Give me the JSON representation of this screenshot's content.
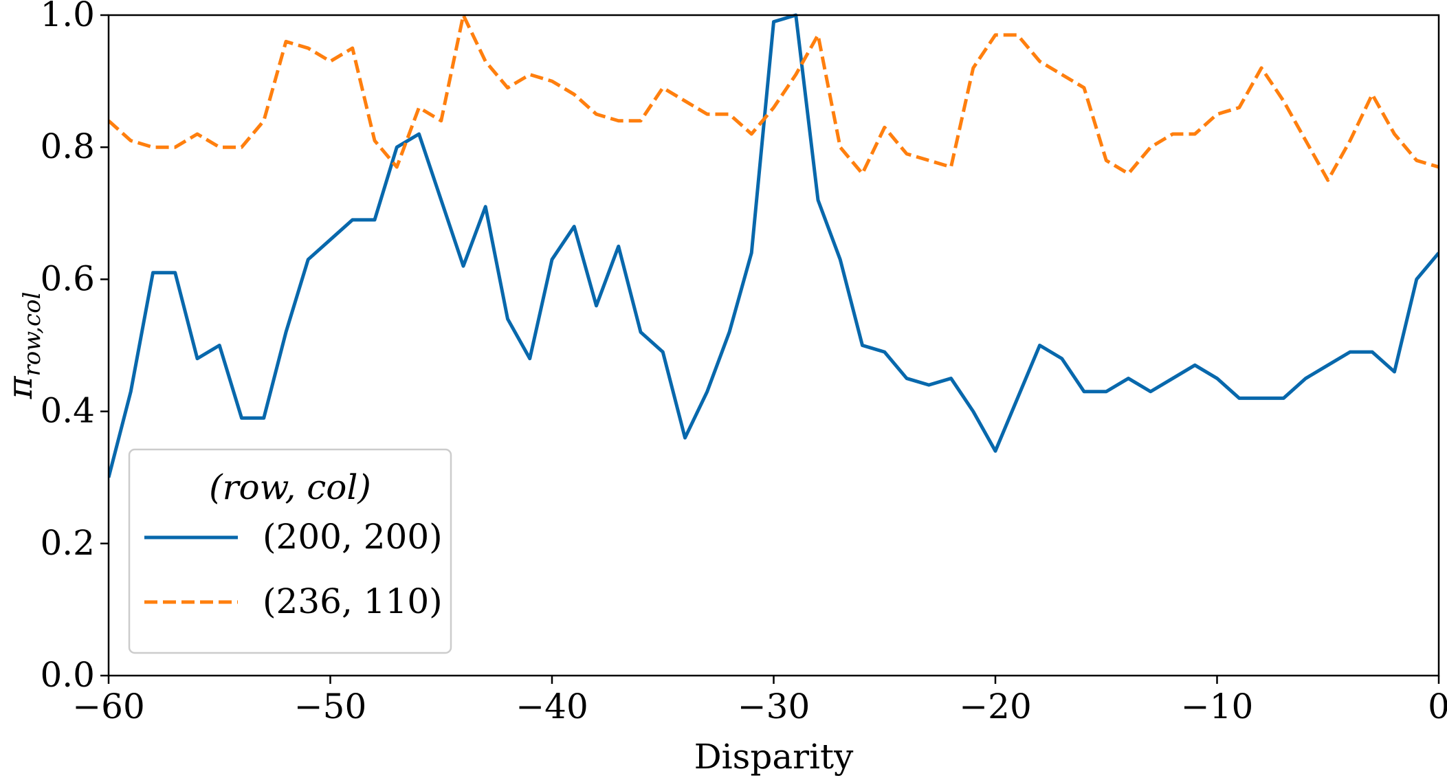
{
  "chart_data": {
    "type": "line",
    "xlabel": "Disparity",
    "ylabel": {
      "base": "π",
      "subscript": "row,col"
    },
    "xlim": [
      -60,
      0
    ],
    "ylim": [
      0,
      1
    ],
    "xticks": [
      -60,
      -50,
      -40,
      -30,
      -20,
      -10,
      0
    ],
    "xtick_labels": [
      "−60",
      "−50",
      "−40",
      "−30",
      "−20",
      "−10",
      "0"
    ],
    "yticks": [
      0,
      0.2,
      0.4,
      0.6,
      0.8,
      1.0
    ],
    "ytick_labels": [
      "0.0",
      "0.2",
      "0.4",
      "0.6",
      "0.8",
      "1.0"
    ],
    "grid": false,
    "legend": {
      "placement": "lower-left",
      "title": "(row,  col)"
    },
    "x": [
      -60,
      -59,
      -58,
      -57,
      -56,
      -55,
      -54,
      -53,
      -52,
      -51,
      -50,
      -49,
      -48,
      -47,
      -46,
      -45,
      -44,
      -43,
      -42,
      -41,
      -40,
      -39,
      -38,
      -37,
      -36,
      -35,
      -34,
      -33,
      -32,
      -31,
      -30,
      -29,
      -28,
      -27,
      -26,
      -25,
      -24,
      -23,
      -22,
      -21,
      -20,
      -19,
      -18,
      -17,
      -16,
      -15,
      -14,
      -13,
      -12,
      -11,
      -10,
      -9,
      -8,
      -7,
      -6,
      -5,
      -4,
      -3,
      -2,
      -1,
      0
    ],
    "series": [
      {
        "name": "(200, 200)",
        "color": "#0868ac",
        "style": "solid",
        "values": [
          0.3,
          0.43,
          0.61,
          0.61,
          0.48,
          0.5,
          0.39,
          0.39,
          0.52,
          0.63,
          0.66,
          0.69,
          0.69,
          0.8,
          0.82,
          0.72,
          0.62,
          0.71,
          0.54,
          0.48,
          0.63,
          0.68,
          0.56,
          0.65,
          0.52,
          0.49,
          0.36,
          0.43,
          0.52,
          0.64,
          0.99,
          1.0,
          0.72,
          0.63,
          0.5,
          0.49,
          0.45,
          0.44,
          0.45,
          0.4,
          0.34,
          0.42,
          0.5,
          0.48,
          0.43,
          0.43,
          0.45,
          0.43,
          0.45,
          0.47,
          0.45,
          0.42,
          0.42,
          0.42,
          0.45,
          0.47,
          0.49,
          0.49,
          0.46,
          0.6,
          0.64
        ]
      },
      {
        "name": "(236, 110)",
        "color": "#ff7f0e",
        "style": "dashed",
        "values": [
          0.84,
          0.81,
          0.8,
          0.8,
          0.82,
          0.8,
          0.8,
          0.84,
          0.96,
          0.95,
          0.93,
          0.95,
          0.81,
          0.77,
          0.86,
          0.84,
          1.0,
          0.93,
          0.89,
          0.91,
          0.9,
          0.88,
          0.85,
          0.84,
          0.84,
          0.89,
          0.87,
          0.85,
          0.85,
          0.82,
          0.86,
          0.91,
          0.97,
          0.8,
          0.76,
          0.83,
          0.79,
          0.78,
          0.77,
          0.92,
          0.97,
          0.97,
          0.93,
          0.91,
          0.89,
          0.78,
          0.76,
          0.8,
          0.82,
          0.82,
          0.85,
          0.86,
          0.92,
          0.87,
          0.81,
          0.75,
          0.81,
          0.88,
          0.82,
          0.78,
          0.77
        ]
      }
    ]
  }
}
